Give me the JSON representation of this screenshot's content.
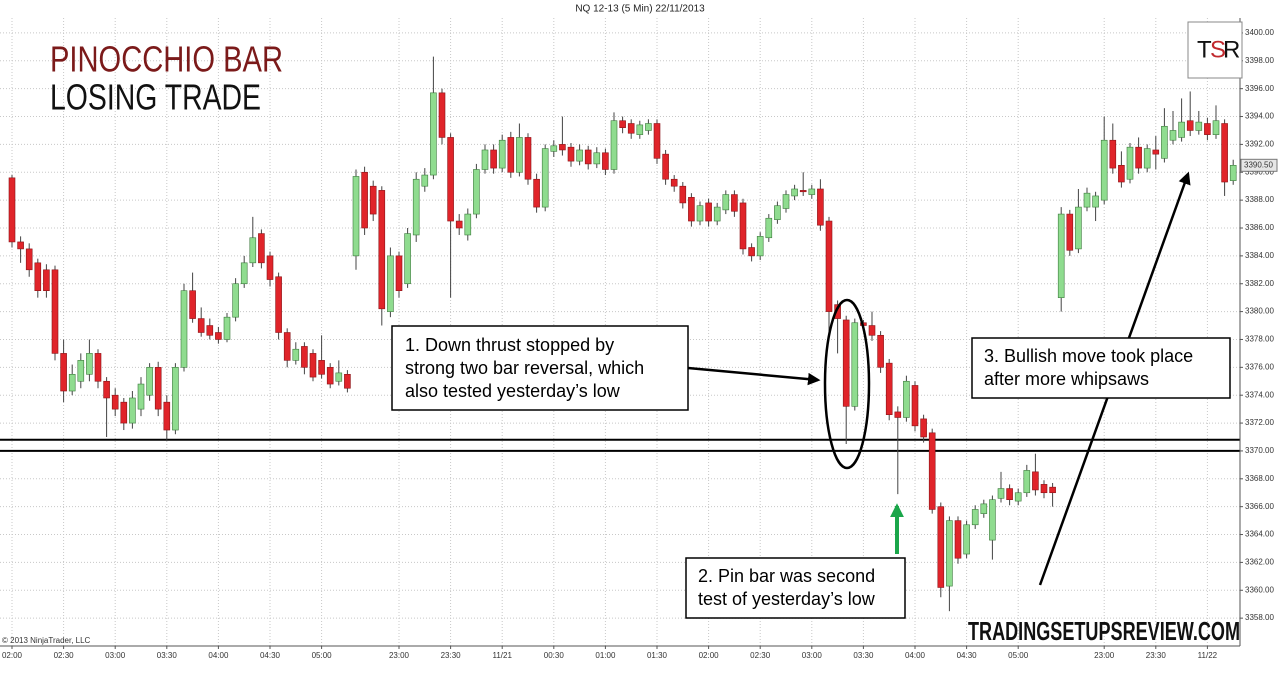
{
  "chart_data": {
    "type": "candlestick",
    "header": "NQ 12-13 (5 Min)  22/11/2013",
    "title": "PINOCCHIO BAR",
    "subtitle": "LOSING TRADE",
    "copyright": "© 2013 NinjaTrader, LLC",
    "footer": "TRADINGSETUPSREVIEW.COM",
    "logo": [
      "T",
      "S",
      "R"
    ],
    "annotations": [
      [
        "1. Down thrust stopped by",
        "strong two bar reversal, which",
        "also tested yesterday’s low"
      ],
      [
        "2. Pin bar was second",
        "test of yesterday’s low"
      ],
      [
        "3. Bullish  move took place",
        "after more whipsaws"
      ]
    ],
    "up_color": "#8fdc8f",
    "down_color": "#e0242a",
    "grid": true,
    "ylim": [
      3356,
      3401
    ],
    "yticks": [
      {
        "value": 3358,
        "label": "3358.00"
      },
      {
        "value": 3360,
        "label": "3360.00"
      },
      {
        "value": 3362,
        "label": "3362.00"
      },
      {
        "value": 3364,
        "label": "3364.00"
      },
      {
        "value": 3366,
        "label": "3366.00"
      },
      {
        "value": 3368,
        "label": "3368.00"
      },
      {
        "value": 3370,
        "label": "3370.00"
      },
      {
        "value": 3372,
        "label": "3372.00"
      },
      {
        "value": 3374,
        "label": "3374.00"
      },
      {
        "value": 3376,
        "label": "3376.00"
      },
      {
        "value": 3378,
        "label": "3378.00"
      },
      {
        "value": 3380,
        "label": "3380.00"
      },
      {
        "value": 3382,
        "label": "3382.00"
      },
      {
        "value": 3384,
        "label": "3384.00"
      },
      {
        "value": 3386,
        "label": "3386.00"
      },
      {
        "value": 3388,
        "label": "3388.00"
      },
      {
        "value": 3390,
        "label": "3390.00"
      },
      {
        "value": 3392,
        "label": "3392.00"
      },
      {
        "value": 3394,
        "label": "3394.00"
      },
      {
        "value": 3396,
        "label": "3396.00"
      },
      {
        "value": 3398,
        "label": "3398.00"
      },
      {
        "value": 3400,
        "label": "3400.00"
      }
    ],
    "current_price": {
      "value": 3390.5,
      "label": "3390.50"
    },
    "support_levels": [
      3370.8,
      3370.0
    ],
    "categories": [
      "02:00",
      null,
      null,
      null,
      null,
      null,
      "02:30",
      null,
      null,
      null,
      null,
      null,
      "03:00",
      null,
      null,
      null,
      null,
      null,
      "03:30",
      null,
      null,
      null,
      null,
      null,
      "04:00",
      null,
      null,
      null,
      null,
      null,
      "04:30",
      null,
      null,
      null,
      null,
      null,
      "05:00",
      null,
      null,
      null,
      null,
      null,
      null,
      null,
      null,
      "23:00",
      null,
      null,
      null,
      null,
      null,
      "23:30",
      null,
      null,
      null,
      null,
      null,
      "11/21",
      null,
      null,
      null,
      null,
      null,
      "00:30",
      null,
      null,
      null,
      null,
      null,
      "01:00",
      null,
      null,
      null,
      null,
      null,
      "01:30",
      null,
      null,
      null,
      null,
      null,
      "02:00",
      null,
      null,
      null,
      null,
      null,
      "02:30",
      null,
      null,
      null,
      null,
      null,
      "03:00",
      null,
      null,
      null,
      null,
      null,
      "03:30",
      null,
      null,
      null,
      null,
      null,
      "04:00",
      null,
      null,
      null,
      null,
      null,
      "04:30",
      null,
      null,
      null,
      null,
      null,
      "05:00",
      null,
      null,
      null,
      null,
      null,
      null,
      null,
      null,
      null,
      "23:00",
      null,
      null,
      null,
      null,
      null,
      "23:30",
      null,
      null,
      null,
      null,
      null,
      "11/22",
      null,
      null,
      null
    ],
    "candles": [
      {
        "open": 3389.6,
        "high": 3389.8,
        "low": 3384.6,
        "close": 3385
      },
      {
        "open": 3385,
        "high": 3385.4,
        "low": 3383.5,
        "close": 3384.5
      },
      {
        "open": 3384.5,
        "high": 3384.9,
        "low": 3382.5,
        "close": 3383
      },
      {
        "open": 3383.5,
        "high": 3383.8,
        "low": 3381,
        "close": 3381.5
      },
      {
        "open": 3383,
        "high": 3383.4,
        "low": 3381,
        "close": 3381.5
      },
      {
        "open": 3383,
        "high": 3383.3,
        "low": 3376.5,
        "close": 3377
      },
      {
        "open": 3377,
        "high": 3378,
        "low": 3373.5,
        "close": 3374.3
      },
      {
        "open": 3374.3,
        "high": 3376.2,
        "low": 3374,
        "close": 3375.5
      },
      {
        "open": 3375,
        "high": 3377,
        "low": 3374.5,
        "close": 3376.5
      },
      {
        "open": 3375.5,
        "high": 3378,
        "low": 3375,
        "close": 3377
      },
      {
        "open": 3377,
        "high": 3377.3,
        "low": 3374.5,
        "close": 3375
      },
      {
        "open": 3375,
        "high": 3375.3,
        "low": 3371,
        "close": 3373.8
      },
      {
        "open": 3374,
        "high": 3374.5,
        "low": 3372.5,
        "close": 3373
      },
      {
        "open": 3373.5,
        "high": 3373.8,
        "low": 3371.5,
        "close": 3372
      },
      {
        "open": 3372,
        "high": 3374.3,
        "low": 3371.6,
        "close": 3373.8
      },
      {
        "open": 3373,
        "high": 3375.3,
        "low": 3372.5,
        "close": 3374.8
      },
      {
        "open": 3374,
        "high": 3376.3,
        "low": 3373.6,
        "close": 3376
      },
      {
        "open": 3376,
        "high": 3376.4,
        "low": 3372.5,
        "close": 3373
      },
      {
        "open": 3373.5,
        "high": 3374,
        "low": 3370.8,
        "close": 3371.5
      },
      {
        "open": 3371.5,
        "high": 3376.3,
        "low": 3371.2,
        "close": 3376
      },
      {
        "open": 3376,
        "high": 3382,
        "low": 3375.7,
        "close": 3381.5
      },
      {
        "open": 3381.5,
        "high": 3382.8,
        "low": 3379.2,
        "close": 3379.5
      },
      {
        "open": 3379.5,
        "high": 3380.3,
        "low": 3378.2,
        "close": 3378.5
      },
      {
        "open": 3379,
        "high": 3379.5,
        "low": 3378,
        "close": 3378.3
      },
      {
        "open": 3378.5,
        "high": 3378.9,
        "low": 3377.7,
        "close": 3378
      },
      {
        "open": 3378,
        "high": 3379.9,
        "low": 3377.8,
        "close": 3379.6
      },
      {
        "open": 3379.6,
        "high": 3382.4,
        "low": 3379.3,
        "close": 3382
      },
      {
        "open": 3382,
        "high": 3384,
        "low": 3381.7,
        "close": 3383.5
      },
      {
        "open": 3383.5,
        "high": 3386.8,
        "low": 3383.2,
        "close": 3385.3
      },
      {
        "open": 3385.6,
        "high": 3385.9,
        "low": 3383.1,
        "close": 3383.5
      },
      {
        "open": 3384,
        "high": 3384.3,
        "low": 3381.8,
        "close": 3382.3
      },
      {
        "open": 3382.5,
        "high": 3382.8,
        "low": 3378,
        "close": 3378.5
      },
      {
        "open": 3378.5,
        "high": 3378.8,
        "low": 3376,
        "close": 3376.5
      },
      {
        "open": 3376.5,
        "high": 3377.8,
        "low": 3376.2,
        "close": 3377.3
      },
      {
        "open": 3377.5,
        "high": 3377.8,
        "low": 3375.5,
        "close": 3376
      },
      {
        "open": 3377,
        "high": 3377.3,
        "low": 3375,
        "close": 3375.3
      },
      {
        "open": 3376.5,
        "high": 3378.3,
        "low": 3375.2,
        "close": 3375.5
      },
      {
        "open": 3376,
        "high": 3376.3,
        "low": 3374.5,
        "close": 3374.8
      },
      {
        "open": 3375,
        "high": 3376.5,
        "low": 3374.7,
        "close": 3375.6
      },
      {
        "open": 3375.5,
        "high": 3375.8,
        "low": 3374.2,
        "close": 3374.5
      },
      {
        "open": 3384,
        "high": 3390.2,
        "low": 3383,
        "close": 3389.7
      },
      {
        "open": 3390,
        "high": 3390.4,
        "low": 3385.5,
        "close": 3386
      },
      {
        "open": 3389,
        "high": 3389.4,
        "low": 3386.5,
        "close": 3387
      },
      {
        "open": 3388.7,
        "high": 3389,
        "low": 3379,
        "close": 3380.2
      },
      {
        "open": 3380,
        "high": 3384.6,
        "low": 3379.6,
        "close": 3384
      },
      {
        "open": 3384,
        "high": 3384.3,
        "low": 3381,
        "close": 3381.5
      },
      {
        "open": 3382,
        "high": 3386,
        "low": 3381.7,
        "close": 3385.6
      },
      {
        "open": 3385.5,
        "high": 3390,
        "low": 3385,
        "close": 3389.5
      },
      {
        "open": 3389,
        "high": 3390.3,
        "low": 3388.6,
        "close": 3389.8
      },
      {
        "open": 3389.8,
        "high": 3398.3,
        "low": 3389.5,
        "close": 3395.7
      },
      {
        "open": 3395.7,
        "high": 3396,
        "low": 3392,
        "close": 3392.5
      },
      {
        "open": 3392.5,
        "high": 3392.8,
        "low": 3381,
        "close": 3386.5
      },
      {
        "open": 3386.5,
        "high": 3387,
        "low": 3385.5,
        "close": 3386
      },
      {
        "open": 3385.5,
        "high": 3387.4,
        "low": 3385.1,
        "close": 3387
      },
      {
        "open": 3387,
        "high": 3390.6,
        "low": 3386.7,
        "close": 3390.2
      },
      {
        "open": 3390.2,
        "high": 3392,
        "low": 3389.9,
        "close": 3391.6
      },
      {
        "open": 3391.6,
        "high": 3392,
        "low": 3389.9,
        "close": 3390.3
      },
      {
        "open": 3390.3,
        "high": 3392.7,
        "low": 3390,
        "close": 3392.3
      },
      {
        "open": 3392.5,
        "high": 3392.9,
        "low": 3389.6,
        "close": 3390
      },
      {
        "open": 3390,
        "high": 3393.5,
        "low": 3389.7,
        "close": 3392.5
      },
      {
        "open": 3392.5,
        "high": 3392.8,
        "low": 3389.1,
        "close": 3389.5
      },
      {
        "open": 3389.5,
        "high": 3389.9,
        "low": 3387.1,
        "close": 3387.5
      },
      {
        "open": 3387.5,
        "high": 3392,
        "low": 3387.2,
        "close": 3391.7
      },
      {
        "open": 3391.5,
        "high": 3392.3,
        "low": 3391.1,
        "close": 3391.9
      },
      {
        "open": 3392,
        "high": 3394,
        "low": 3391.2,
        "close": 3391.6
      },
      {
        "open": 3391.8,
        "high": 3392.1,
        "low": 3390.4,
        "close": 3390.8
      },
      {
        "open": 3390.8,
        "high": 3392,
        "low": 3390.5,
        "close": 3391.6
      },
      {
        "open": 3391.6,
        "high": 3391.9,
        "low": 3390.2,
        "close": 3390.6
      },
      {
        "open": 3390.6,
        "high": 3391.8,
        "low": 3390.3,
        "close": 3391.4
      },
      {
        "open": 3391.4,
        "high": 3391.7,
        "low": 3389.8,
        "close": 3390.2
      },
      {
        "open": 3390.2,
        "high": 3394.3,
        "low": 3389.9,
        "close": 3393.7
      },
      {
        "open": 3393.7,
        "high": 3394,
        "low": 3392.8,
        "close": 3393.2
      },
      {
        "open": 3393.5,
        "high": 3393.8,
        "low": 3392.4,
        "close": 3392.8
      },
      {
        "open": 3392.7,
        "high": 3393.7,
        "low": 3392.4,
        "close": 3393.4
      },
      {
        "open": 3393,
        "high": 3393.8,
        "low": 3392.7,
        "close": 3393.5
      },
      {
        "open": 3393.5,
        "high": 3393.8,
        "low": 3390.6,
        "close": 3391
      },
      {
        "open": 3391.3,
        "high": 3391.6,
        "low": 3389.1,
        "close": 3389.5
      },
      {
        "open": 3389.5,
        "high": 3389.8,
        "low": 3388.6,
        "close": 3389
      },
      {
        "open": 3389,
        "high": 3389.3,
        "low": 3387.4,
        "close": 3387.8
      },
      {
        "open": 3388.2,
        "high": 3388.5,
        "low": 3386.1,
        "close": 3386.5
      },
      {
        "open": 3386.5,
        "high": 3387.9,
        "low": 3386.2,
        "close": 3387.6
      },
      {
        "open": 3387.8,
        "high": 3388.1,
        "low": 3386.1,
        "close": 3386.5
      },
      {
        "open": 3386.5,
        "high": 3387.8,
        "low": 3386.2,
        "close": 3387.5
      },
      {
        "open": 3387.3,
        "high": 3388.7,
        "low": 3387,
        "close": 3388.4
      },
      {
        "open": 3388.4,
        "high": 3388.7,
        "low": 3386.8,
        "close": 3387.2
      },
      {
        "open": 3387.8,
        "high": 3388.1,
        "low": 3384.1,
        "close": 3384.5
      },
      {
        "open": 3384.6,
        "high": 3384.9,
        "low": 3383.6,
        "close": 3384
      },
      {
        "open": 3384,
        "high": 3385.7,
        "low": 3383.7,
        "close": 3385.4
      },
      {
        "open": 3385.3,
        "high": 3387,
        "low": 3385,
        "close": 3386.7
      },
      {
        "open": 3386.6,
        "high": 3387.9,
        "low": 3386.3,
        "close": 3387.6
      },
      {
        "open": 3387.4,
        "high": 3388.7,
        "low": 3387.1,
        "close": 3388.4
      },
      {
        "open": 3388.3,
        "high": 3389.1,
        "low": 3388,
        "close": 3388.8
      },
      {
        "open": 3388.7,
        "high": 3390,
        "low": 3388.3,
        "close": 3388.6
      },
      {
        "open": 3388.4,
        "high": 3389.1,
        "low": 3388.1,
        "close": 3388.8
      },
      {
        "open": 3388.8,
        "high": 3389.5,
        "low": 3385.8,
        "close": 3386.2
      },
      {
        "open": 3386.5,
        "high": 3386.8,
        "low": 3378.5,
        "close": 3380
      },
      {
        "open": 3380.5,
        "high": 3380.8,
        "low": 3377,
        "close": 3379.5
      },
      {
        "open": 3379.4,
        "high": 3379.7,
        "low": 3370.5,
        "close": 3373.2
      },
      {
        "open": 3373.2,
        "high": 3379.5,
        "low": 3372.9,
        "close": 3379.2
      },
      {
        "open": 3379.2,
        "high": 3379.4,
        "low": 3378.6,
        "close": 3379
      },
      {
        "open": 3379,
        "high": 3380,
        "low": 3377.9,
        "close": 3378.3
      },
      {
        "open": 3378.3,
        "high": 3378.6,
        "low": 3375.6,
        "close": 3376
      },
      {
        "open": 3376.3,
        "high": 3376.6,
        "low": 3372.2,
        "close": 3372.6
      },
      {
        "open": 3372.8,
        "high": 3373.2,
        "low": 3366.9,
        "close": 3372.4
      },
      {
        "open": 3372.4,
        "high": 3375.4,
        "low": 3372.1,
        "close": 3375
      },
      {
        "open": 3374.7,
        "high": 3375,
        "low": 3371.4,
        "close": 3371.8
      },
      {
        "open": 3372.3,
        "high": 3372.6,
        "low": 3370.6,
        "close": 3371
      },
      {
        "open": 3371.3,
        "high": 3371.6,
        "low": 3365.5,
        "close": 3365.8
      },
      {
        "open": 3366,
        "high": 3366.3,
        "low": 3359.5,
        "close": 3360.2
      },
      {
        "open": 3360.3,
        "high": 3365.3,
        "low": 3358.5,
        "close": 3365
      },
      {
        "open": 3365,
        "high": 3365.3,
        "low": 3361.9,
        "close": 3362.3
      },
      {
        "open": 3362.6,
        "high": 3365,
        "low": 3362.3,
        "close": 3364.7
      },
      {
        "open": 3364.7,
        "high": 3366.1,
        "low": 3364.4,
        "close": 3365.8
      },
      {
        "open": 3365.5,
        "high": 3366.5,
        "low": 3365.2,
        "close": 3366.2
      },
      {
        "open": 3363.6,
        "high": 3366.8,
        "low": 3362.2,
        "close": 3366.5
      },
      {
        "open": 3366.6,
        "high": 3368.5,
        "low": 3366.3,
        "close": 3367.3
      },
      {
        "open": 3367.3,
        "high": 3367.6,
        "low": 3366.1,
        "close": 3366.5
      },
      {
        "open": 3366.4,
        "high": 3367.3,
        "low": 3366.1,
        "close": 3367
      },
      {
        "open": 3367,
        "high": 3369,
        "low": 3366.7,
        "close": 3368.6
      },
      {
        "open": 3368.5,
        "high": 3369.8,
        "low": 3366.8,
        "close": 3367.2
      },
      {
        "open": 3367.6,
        "high": 3367.9,
        "low": 3366.6,
        "close": 3367
      },
      {
        "open": 3367.4,
        "high": 3367.7,
        "low": 3366,
        "close": 3367
      },
      {
        "open": 3381,
        "high": 3387.5,
        "low": 3380,
        "close": 3387
      },
      {
        "open": 3387,
        "high": 3387.3,
        "low": 3384,
        "close": 3384.4
      },
      {
        "open": 3384.5,
        "high": 3388.8,
        "low": 3384.2,
        "close": 3387.5
      },
      {
        "open": 3387.5,
        "high": 3388.9,
        "low": 3387.2,
        "close": 3388.5
      },
      {
        "open": 3387.5,
        "high": 3388.6,
        "low": 3386.5,
        "close": 3388.3
      },
      {
        "open": 3388,
        "high": 3394,
        "low": 3387.7,
        "close": 3392.3
      },
      {
        "open": 3392.3,
        "high": 3393.5,
        "low": 3389.9,
        "close": 3390.3
      },
      {
        "open": 3390.5,
        "high": 3391.5,
        "low": 3388.9,
        "close": 3389.3
      },
      {
        "open": 3389.5,
        "high": 3392.1,
        "low": 3389.2,
        "close": 3391.8
      },
      {
        "open": 3391.8,
        "high": 3392.5,
        "low": 3389.9,
        "close": 3390.3
      },
      {
        "open": 3390.3,
        "high": 3392,
        "low": 3390,
        "close": 3391.7
      },
      {
        "open": 3391.6,
        "high": 3392.6,
        "low": 3390.2,
        "close": 3391.3
      },
      {
        "open": 3391,
        "high": 3394.6,
        "low": 3390.7,
        "close": 3393.3
      },
      {
        "open": 3392.3,
        "high": 3394.4,
        "low": 3392,
        "close": 3393
      },
      {
        "open": 3392.5,
        "high": 3395.3,
        "low": 3392.2,
        "close": 3393.6
      },
      {
        "open": 3393.7,
        "high": 3395.8,
        "low": 3392.6,
        "close": 3393
      },
      {
        "open": 3393,
        "high": 3394.4,
        "low": 3392.7,
        "close": 3393.6
      },
      {
        "open": 3393.5,
        "high": 3393.9,
        "low": 3392.3,
        "close": 3392.7
      },
      {
        "open": 3392.7,
        "high": 3394.8,
        "low": 3392.4,
        "close": 3393.7
      },
      {
        "open": 3393.5,
        "high": 3393.8,
        "low": 3388.3,
        "close": 3389.3
      },
      {
        "open": 3389.4,
        "high": 3390.9,
        "low": 3389.1,
        "close": 3390.5
      }
    ]
  }
}
